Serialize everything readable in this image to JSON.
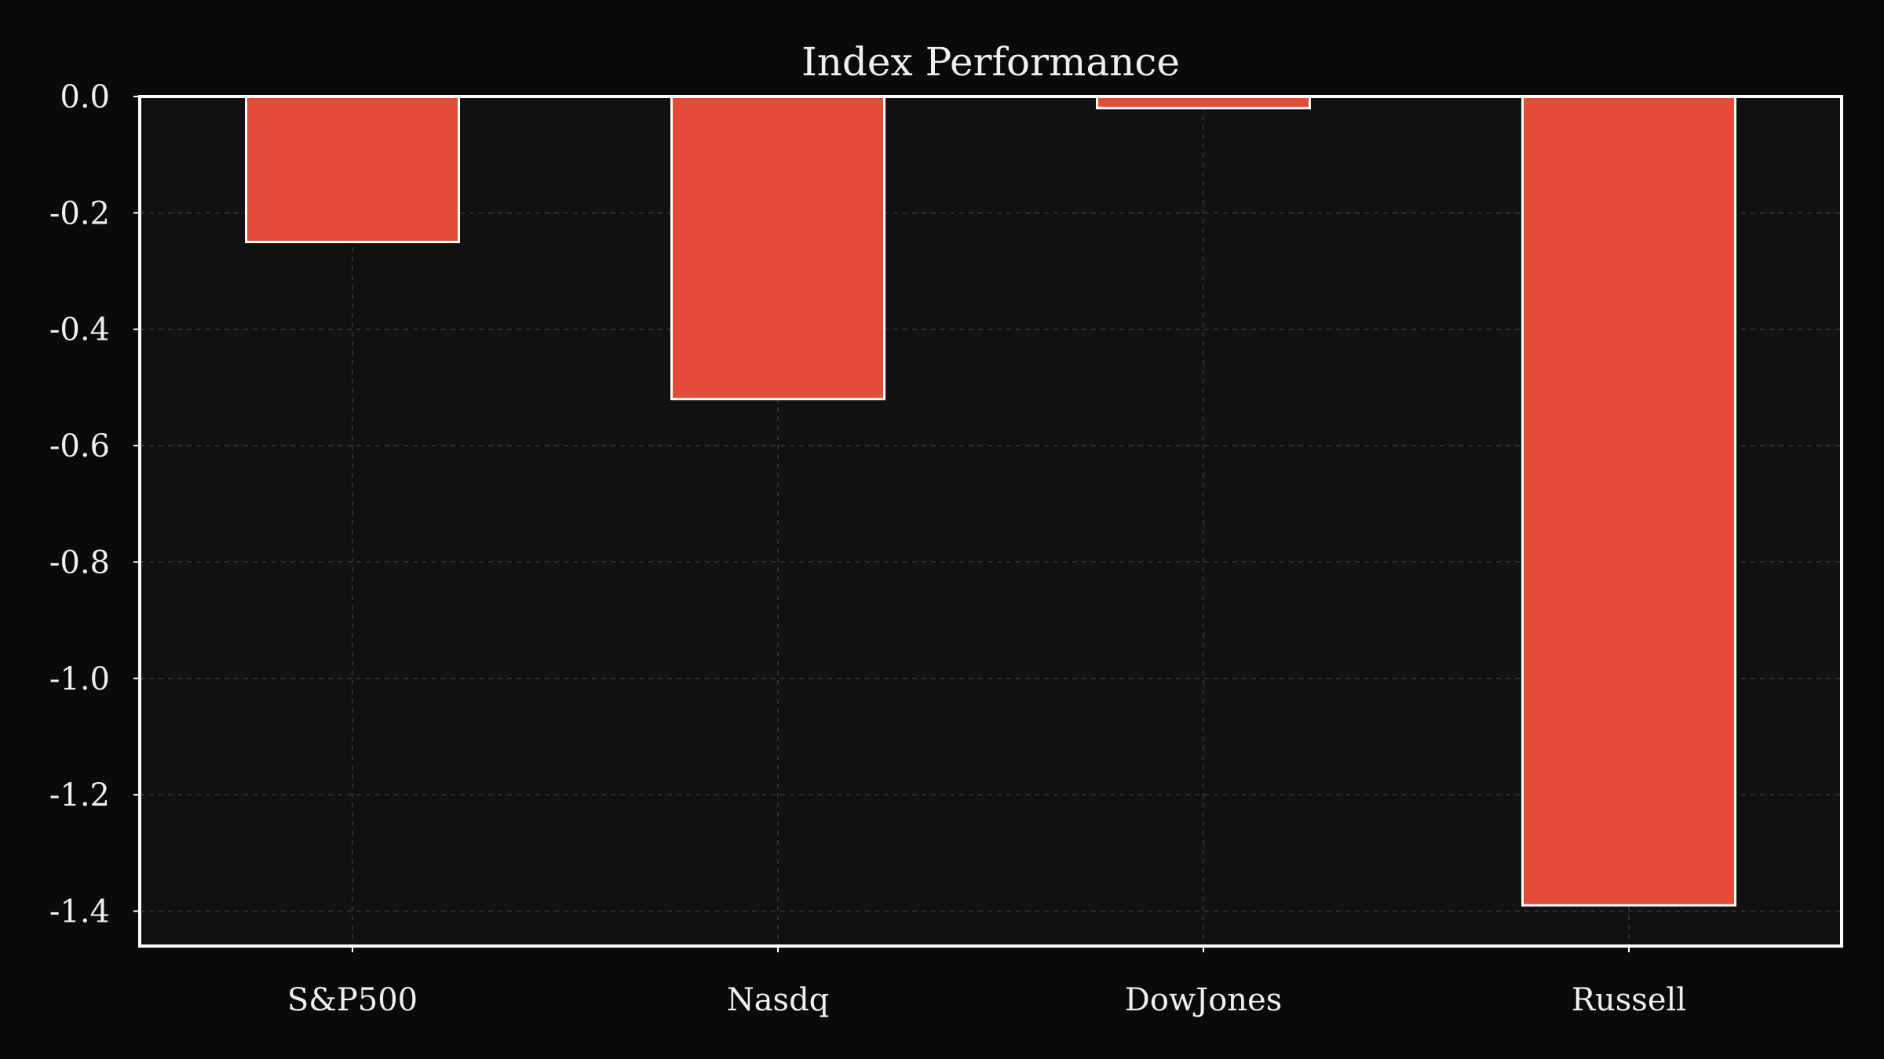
{
  "chart_data": {
    "type": "bar",
    "title": "Index Performance",
    "xlabel": "",
    "ylabel": "",
    "categories": [
      "S&P500",
      "Nasdq",
      "DowJones",
      "Russell"
    ],
    "values": [
      -0.25,
      -0.52,
      -0.02,
      -1.39
    ],
    "ylim": [
      -1.46,
      0.0
    ],
    "yticks": [
      0.0,
      -0.2,
      -0.4,
      -0.6,
      -0.8,
      -1.0,
      -1.2,
      -1.4
    ],
    "ytick_labels": [
      "0.0",
      "-0.2",
      "-0.4",
      "-0.6",
      "-0.8",
      "-1.0",
      "-1.2",
      "-1.4"
    ],
    "grid": true,
    "legend": "none"
  },
  "colors": {
    "background": "#0a0a0b",
    "plot_background": "#111112",
    "bar_fill": "#e34c36",
    "bar_stroke": "#ffffff",
    "axes": "#ffffff",
    "grid": "#3a3a3a",
    "text": "#f0f0f0"
  }
}
